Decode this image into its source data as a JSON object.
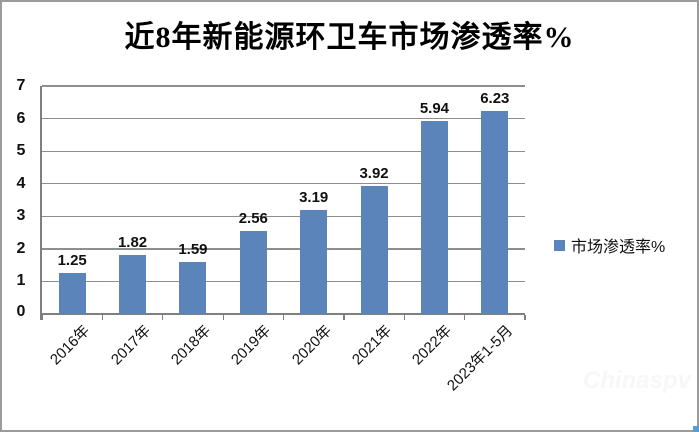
{
  "chart_data": {
    "type": "bar",
    "title": "近8年新能源环卫车市场渗透率%",
    "categories": [
      "2016年",
      "2017年",
      "2018年",
      "2019年",
      "2020年",
      "2021年",
      "2022年",
      "2023年1-5月"
    ],
    "series": [
      {
        "name": "市场渗透率%",
        "values": [
          1.25,
          1.82,
          1.59,
          2.56,
          3.19,
          3.92,
          5.94,
          6.23
        ]
      }
    ],
    "data_labels": [
      "1.25",
      "1.82",
      "1.59",
      "2.56",
      "3.19",
      "3.92",
      "5.94",
      "6.23"
    ],
    "xlabel": "",
    "ylabel": "",
    "ylim": [
      0,
      7
    ],
    "y_ticks": [
      0,
      1,
      2,
      3,
      4,
      5,
      6,
      7
    ],
    "grid": true,
    "legend_position": "right",
    "bar_color": "#5B84BA",
    "gridline_color": "#8e8e8e",
    "axis_color": "#7f7f7f"
  },
  "legend": {
    "label": "市场渗透率%"
  },
  "watermark": {
    "text": "Chinaspv"
  }
}
